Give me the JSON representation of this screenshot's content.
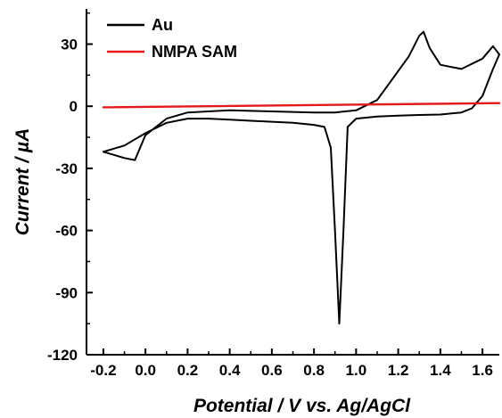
{
  "chart_data": {
    "type": "line",
    "xlabel": "Potential / V vs. Ag/AgCl",
    "ylabel": "Current / µA",
    "xlim": [
      -0.28,
      1.68
    ],
    "ylim": [
      -120,
      47
    ],
    "xticks": [
      -0.2,
      0.0,
      0.2,
      0.4,
      0.6,
      0.8,
      1.0,
      1.2,
      1.4,
      1.6
    ],
    "xtick_labels": [
      "-0.2",
      "0.0",
      "0.2",
      "0.4",
      "0.6",
      "0.8",
      "1.0",
      "1.2",
      "1.4",
      "1.6"
    ],
    "yticks": [
      -120,
      -90,
      -60,
      -30,
      0,
      30
    ],
    "ytick_labels": [
      "-120",
      "-90",
      "-60",
      "-30",
      "0",
      "30"
    ],
    "legend_position": "top-left",
    "series": [
      {
        "name": "Au",
        "color": "#000000",
        "x": [
          -0.2,
          -0.1,
          0.0,
          0.1,
          0.2,
          0.3,
          0.4,
          0.5,
          0.6,
          0.7,
          0.8,
          0.85,
          0.88,
          0.9,
          0.92,
          0.94,
          0.96,
          1.0,
          1.1,
          1.2,
          1.3,
          1.4,
          1.5,
          1.55,
          1.6,
          1.65,
          1.68,
          1.65,
          1.6,
          1.5,
          1.4,
          1.35,
          1.32,
          1.3,
          1.25,
          1.2,
          1.15,
          1.1,
          1.0,
          0.9,
          0.8,
          0.6,
          0.4,
          0.2,
          0.1,
          0.0,
          -0.05,
          -0.1,
          -0.2
        ],
        "y": [
          -22,
          -19,
          -13,
          -8,
          -6,
          -6,
          -6.5,
          -7,
          -7.5,
          -8,
          -9,
          -10,
          -20,
          -60,
          -105,
          -60,
          -10,
          -6,
          -5,
          -4.5,
          -4.2,
          -4,
          -3,
          -1,
          5,
          18,
          25,
          29,
          23,
          18,
          20,
          28,
          36,
          34,
          24,
          17,
          10,
          3,
          -2,
          -3,
          -3,
          -2.5,
          -2,
          -3,
          -6,
          -14,
          -26,
          -25,
          -22
        ]
      },
      {
        "name": "NMPA SAM",
        "color": "#e31a1c",
        "x": [
          -0.2,
          1.68
        ],
        "y": [
          -0.5,
          1.5
        ]
      }
    ]
  }
}
